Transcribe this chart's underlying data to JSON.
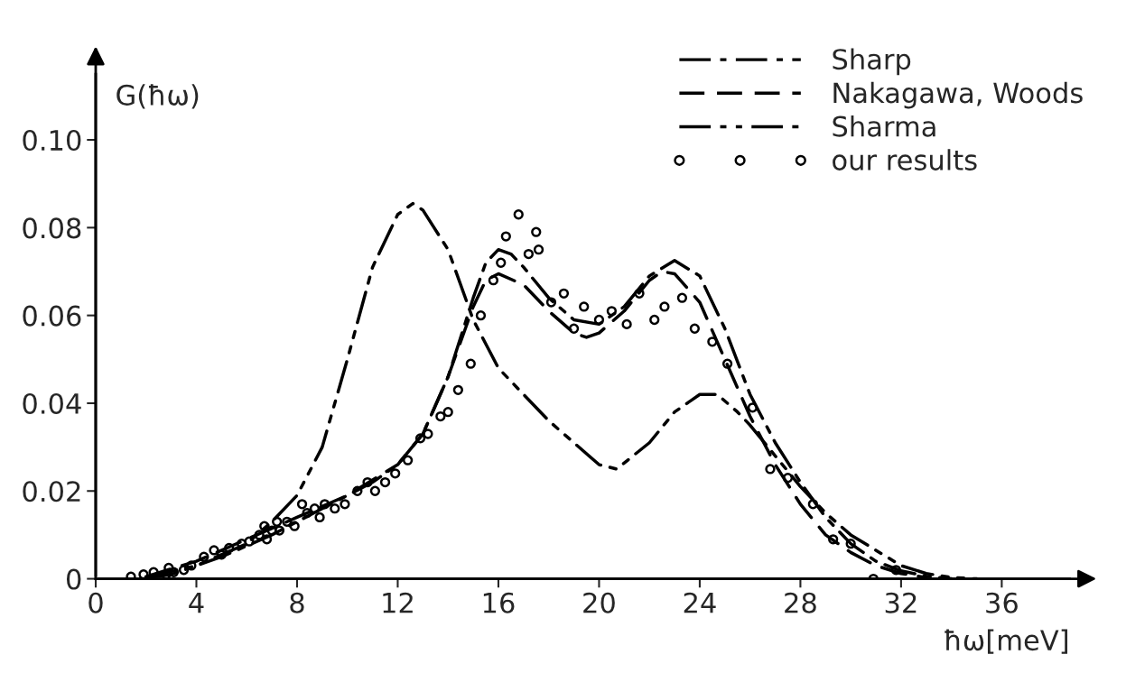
{
  "chart_data": {
    "type": "line",
    "ylabel": "G(ħω)",
    "xlabel": "ħω[meV]",
    "xlim": [
      0,
      38.7
    ],
    "ylim": [
      0,
      0.115
    ],
    "xticks": [
      0,
      4,
      8,
      12,
      16,
      20,
      24,
      28,
      32,
      36
    ],
    "yticks": [
      {
        "value": 0,
        "label": "0"
      },
      0.02,
      0.04,
      0.06,
      0.08,
      {
        "value": 0.1,
        "label": "0.10"
      }
    ],
    "grid": false,
    "legend": "top right",
    "series": [
      {
        "name": "Sharp",
        "color": "#000000",
        "line_style": "dashdot",
        "x": [
          2,
          3,
          4,
          5,
          6,
          7,
          8,
          9,
          10,
          11,
          12,
          13,
          14,
          15,
          15.5,
          16,
          16.5,
          17,
          18,
          19,
          20,
          21,
          22,
          23,
          24,
          25,
          26,
          27,
          28,
          29,
          30,
          31,
          32,
          33,
          34
        ],
        "values": [
          0.0002,
          0.001,
          0.003,
          0.005,
          0.0075,
          0.01,
          0.013,
          0.016,
          0.019,
          0.022,
          0.026,
          0.033,
          0.046,
          0.064,
          0.072,
          0.075,
          0.074,
          0.071,
          0.064,
          0.059,
          0.058,
          0.062,
          0.069,
          0.0725,
          0.069,
          0.057,
          0.042,
          0.031,
          0.022,
          0.014,
          0.008,
          0.004,
          0.0018,
          0.0006,
          0
        ]
      },
      {
        "name": "Nakagawa, Woods",
        "color": "#000000",
        "line_style": "dashed",
        "x": [
          2,
          4,
          6,
          8,
          10,
          12,
          13,
          14,
          15,
          15.5,
          16,
          17,
          18,
          19,
          19.5,
          20,
          21,
          22,
          22.5,
          23,
          24,
          25,
          26,
          27,
          28,
          29,
          30,
          31,
          32,
          33
        ],
        "values": [
          0.0005,
          0.004,
          0.009,
          0.014,
          0.019,
          0.026,
          0.033,
          0.046,
          0.062,
          0.068,
          0.0695,
          0.067,
          0.061,
          0.056,
          0.055,
          0.056,
          0.061,
          0.068,
          0.07,
          0.0695,
          0.063,
          0.05,
          0.037,
          0.026,
          0.017,
          0.01,
          0.006,
          0.003,
          0.0012,
          0.0003
        ]
      },
      {
        "name": "Sharma",
        "color": "#000000",
        "line_style": "dashdotdot",
        "x": [
          2,
          4,
          6,
          7,
          8,
          9,
          10,
          11,
          12,
          12.6,
          13,
          14,
          15,
          16,
          18,
          20,
          20.7,
          22,
          23,
          24,
          24.7,
          25.5,
          26,
          27,
          28,
          29,
          30,
          31,
          32,
          33,
          34,
          35
        ],
        "values": [
          0.0003,
          0.003,
          0.008,
          0.013,
          0.019,
          0.03,
          0.05,
          0.071,
          0.083,
          0.0855,
          0.084,
          0.075,
          0.059,
          0.048,
          0.036,
          0.026,
          0.025,
          0.031,
          0.038,
          0.042,
          0.042,
          0.038,
          0.035,
          0.028,
          0.021,
          0.015,
          0.01,
          0.0065,
          0.003,
          0.0012,
          0.0003,
          0
        ]
      },
      {
        "name": "our results",
        "color": "#000000",
        "type": "scatter",
        "marker": "circle",
        "x": [
          1.4,
          1.9,
          2.3,
          2.8,
          2.9,
          3.1,
          3.5,
          3.8,
          4.3,
          4.7,
          5.0,
          5.3,
          5.8,
          6.1,
          6.5,
          6.7,
          6.8,
          7.0,
          7.2,
          7.3,
          7.6,
          7.9,
          8.2,
          8.4,
          8.7,
          8.9,
          9.1,
          9.5,
          9.9,
          10.4,
          10.8,
          11.1,
          11.5,
          11.9,
          12.4,
          12.9,
          13.2,
          13.7,
          14.0,
          14.4,
          14.9,
          15.3,
          15.8,
          16.1,
          16.3,
          16.8,
          17.2,
          17.5,
          17.6,
          18.1,
          18.6,
          19.0,
          19.4,
          20.0,
          20.5,
          21.1,
          21.6,
          22.2,
          22.6,
          23.3,
          23.8,
          24.5,
          25.1,
          26.1,
          26.8,
          27.5,
          28.5,
          29.3,
          30.0,
          30.9,
          31.8
        ],
        "values": [
          0.0005,
          0.001,
          0.0015,
          0.001,
          0.0025,
          0.0015,
          0.002,
          0.003,
          0.005,
          0.0065,
          0.0055,
          0.007,
          0.008,
          0.0085,
          0.01,
          0.012,
          0.009,
          0.011,
          0.013,
          0.011,
          0.013,
          0.012,
          0.017,
          0.015,
          0.016,
          0.014,
          0.017,
          0.016,
          0.017,
          0.02,
          0.022,
          0.02,
          0.022,
          0.024,
          0.027,
          0.032,
          0.033,
          0.037,
          0.038,
          0.043,
          0.049,
          0.06,
          0.068,
          0.072,
          0.078,
          0.083,
          0.074,
          0.079,
          0.075,
          0.063,
          0.065,
          0.057,
          0.062,
          0.059,
          0.061,
          0.058,
          0.065,
          0.059,
          0.062,
          0.064,
          0.057,
          0.054,
          0.049,
          0.039,
          0.025,
          0.023,
          0.017,
          0.009,
          0.008,
          0.0,
          0.002
        ]
      }
    ]
  }
}
